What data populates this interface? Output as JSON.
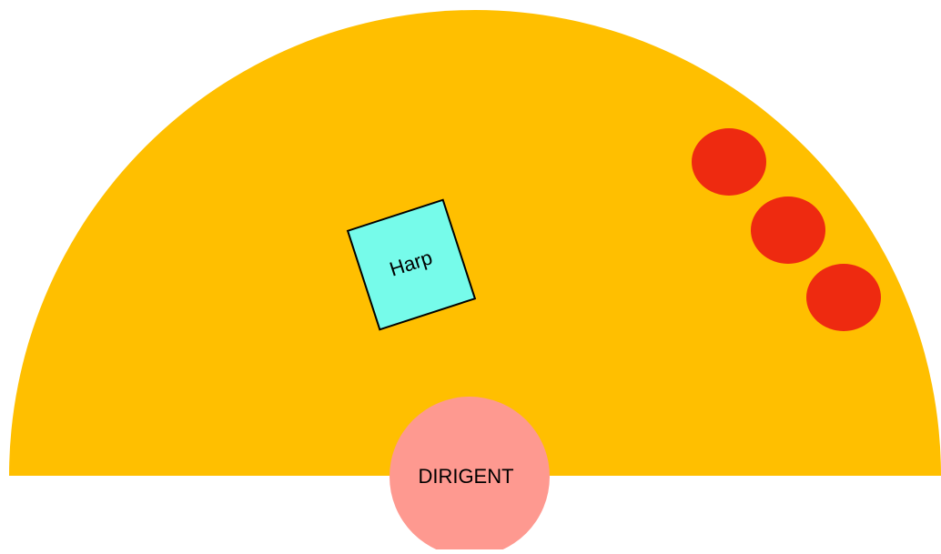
{
  "nodes": [
    {
      "label": "Harp"
    },
    {
      "label": "DIRIGENT"
    }
  ]
}
